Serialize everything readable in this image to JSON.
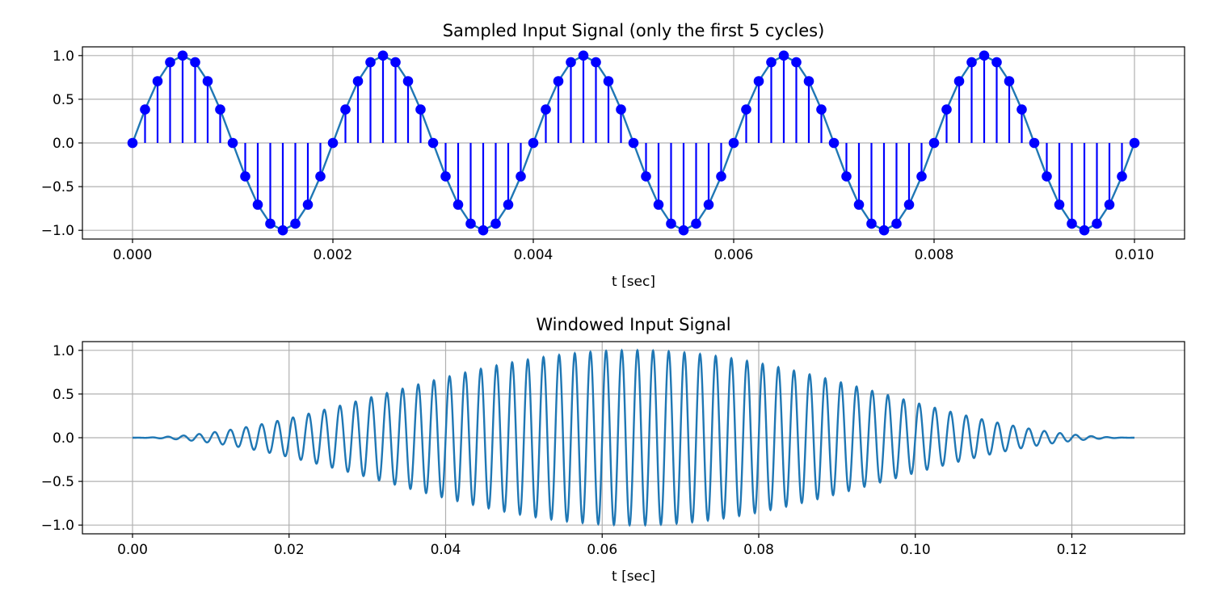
{
  "chart_data": [
    {
      "type": "line",
      "title": "Sampled Input Signal (only the first 5 cycles)",
      "xlabel": "t [sec]",
      "ylabel": "",
      "xlim": [
        -0.0005,
        0.0105
      ],
      "ylim": [
        -1.1,
        1.1
      ],
      "grid": true,
      "xticks": [
        0,
        0.002,
        0.004,
        0.006,
        0.008,
        0.01
      ],
      "xtick_labels": [
        "0.000",
        "0.002",
        "0.004",
        "0.006",
        "0.008",
        "0.010"
      ],
      "yticks": [
        1.0,
        0.5,
        0.0,
        -0.5,
        -1.0
      ],
      "ytick_labels": [
        "1.0",
        "0.5",
        "0.0",
        "−0.5",
        "−1.0"
      ],
      "signal": {
        "function": "sine",
        "frequency_hz": 500,
        "amplitude": 1.0,
        "sample_interval": 0.000125,
        "t_start": 0.0,
        "t_end": 0.01,
        "line_color": "#1f77b4"
      },
      "stems": {
        "color": "#0000ff",
        "marker_color": "#0000ff"
      },
      "samples": {
        "t": [
          0.0,
          0.000125,
          0.00025,
          0.000375,
          0.0005,
          0.000625,
          0.00075,
          0.000875,
          0.001,
          0.001125,
          0.00125,
          0.001375,
          0.0015,
          0.001625,
          0.00175,
          0.001875,
          0.002,
          0.002125,
          0.00225,
          0.002375,
          0.0025,
          0.002625,
          0.00275,
          0.002875,
          0.003,
          0.003125,
          0.00325,
          0.003375,
          0.0035,
          0.003625,
          0.00375,
          0.003875,
          0.004,
          0.004125,
          0.00425,
          0.004375,
          0.0045,
          0.004625,
          0.00475,
          0.004875,
          0.005,
          0.005125,
          0.00525,
          0.005375,
          0.0055,
          0.005625,
          0.00575,
          0.005875,
          0.006,
          0.006125,
          0.00625,
          0.006375,
          0.0065,
          0.006625,
          0.00675,
          0.006875,
          0.007,
          0.007125,
          0.00725,
          0.007375,
          0.0075,
          0.007625,
          0.00775,
          0.007875,
          0.008,
          0.008125,
          0.00825,
          0.008375,
          0.0085,
          0.008625,
          0.00875,
          0.008875,
          0.009,
          0.009125,
          0.00925,
          0.009375,
          0.0095,
          0.009625,
          0.00975,
          0.009875,
          0.01
        ],
        "y": [
          0.0,
          0.383,
          0.707,
          0.924,
          1.0,
          0.924,
          0.707,
          0.383,
          0.0,
          -0.383,
          -0.707,
          -0.924,
          -1.0,
          -0.924,
          -0.707,
          -0.383,
          0.0,
          0.383,
          0.707,
          0.924,
          1.0,
          0.924,
          0.707,
          0.383,
          0.0,
          -0.383,
          -0.707,
          -0.924,
          -1.0,
          -0.924,
          -0.707,
          -0.383,
          0.0,
          0.383,
          0.707,
          0.924,
          1.0,
          0.924,
          0.707,
          0.383,
          0.0,
          -0.383,
          -0.707,
          -0.924,
          -1.0,
          -0.924,
          -0.707,
          -0.383,
          0.0,
          0.383,
          0.707,
          0.924,
          1.0,
          0.924,
          0.707,
          0.383,
          0.0,
          -0.383,
          -0.707,
          -0.924,
          -1.0,
          -0.924,
          -0.707,
          -0.383,
          0.0,
          0.383,
          0.707,
          0.924,
          1.0,
          0.924,
          0.707,
          0.383,
          0.0,
          -0.383,
          -0.707,
          -0.924,
          -1.0,
          -0.924,
          -0.707,
          -0.383,
          0.0
        ]
      }
    },
    {
      "type": "line",
      "title": "Windowed Input Signal",
      "xlabel": "t [sec]",
      "ylabel": "",
      "xlim": [
        -0.0064,
        0.1344
      ],
      "ylim": [
        -1.1,
        1.1
      ],
      "grid": true,
      "xticks": [
        0.0,
        0.02,
        0.04,
        0.06,
        0.08,
        0.1,
        0.12
      ],
      "xtick_labels": [
        "0.00",
        "0.02",
        "0.04",
        "0.06",
        "0.08",
        "0.10",
        "0.12"
      ],
      "yticks": [
        1.0,
        0.5,
        0.0,
        -0.5,
        -1.0
      ],
      "ytick_labels": [
        "1.0",
        "0.5",
        "0.0",
        "−0.5",
        "−1.0"
      ],
      "signal": {
        "function": "sine",
        "frequency_hz": 500,
        "amplitude": 1.0,
        "window": "hann",
        "t_start": 0.0,
        "t_end": 0.128,
        "line_color": "#1f77b4"
      }
    }
  ]
}
